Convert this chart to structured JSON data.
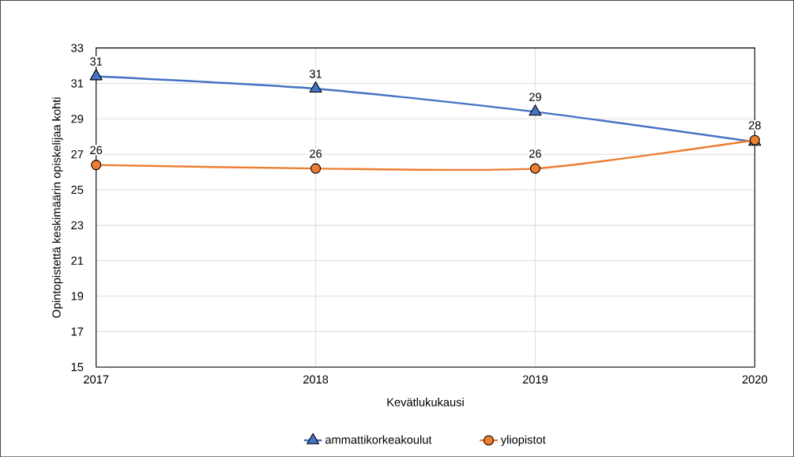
{
  "chart_data": {
    "type": "line",
    "xlabel": "Kevätlukukausi",
    "ylabel": "Opintopistettä keskimäärin opiskelijaa kohti",
    "x": [
      2017,
      2018,
      2019,
      2020
    ],
    "xlim": [
      2017,
      2020
    ],
    "xticks": [
      2017,
      2018,
      2019,
      2020
    ],
    "ylim": [
      15,
      33
    ],
    "yticks": [
      15,
      17,
      19,
      21,
      23,
      25,
      27,
      29,
      31,
      33
    ],
    "grid": true,
    "legend": "bottom",
    "series": [
      {
        "name": "ammattikorkeakoulut",
        "color": "#4472c4",
        "marker": "triangle",
        "values": [
          31.4,
          30.7,
          29.4,
          27.7
        ],
        "value_labels": [
          "31",
          "31",
          "29",
          null
        ]
      },
      {
        "name": "yliopistot",
        "color": "#ed7d31",
        "marker": "circle",
        "values": [
          26.4,
          26.2,
          26.2,
          27.8
        ],
        "value_labels": [
          "26",
          "26",
          "26",
          "28"
        ]
      }
    ]
  }
}
